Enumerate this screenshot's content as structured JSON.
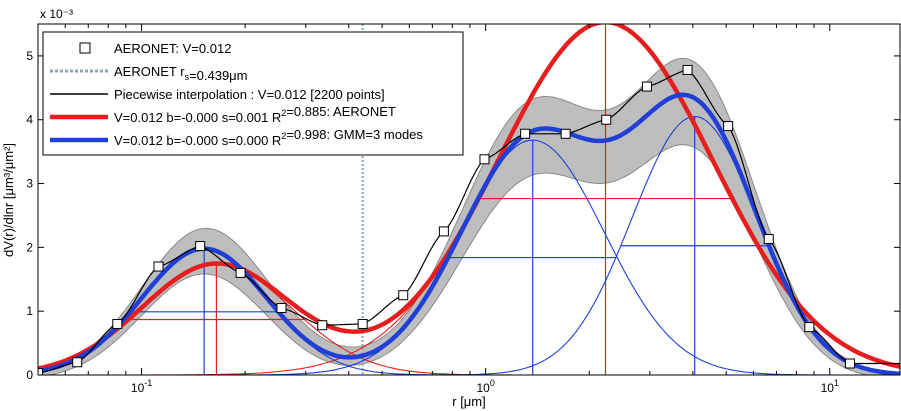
{
  "chart_data": {
    "type": "line",
    "xlabel": "r [μm]",
    "ylabel": "dV(r)/dlnr [μm³/μm²]",
    "xscale": "log",
    "xlim": [
      0.05,
      16
    ],
    "ylim": [
      0,
      5.5
    ],
    "y_multiplier": "x 10⁻³",
    "x_ticks": [
      {
        "value": 0.1,
        "base": "10",
        "exp": "-1"
      },
      {
        "value": 1,
        "base": "10",
        "exp": "0"
      },
      {
        "value": 10,
        "base": "10",
        "exp": "1"
      }
    ],
    "y_ticks": [
      "0",
      "1",
      "2",
      "3",
      "4",
      "5"
    ],
    "grid": false,
    "legend_placement": "top-left",
    "colors": {
      "aeronet_points": "#000000",
      "aeronet_rs": "#8fa3b0",
      "interpolation": "#000000",
      "aeronet_fit": "#e61e1e",
      "gmm_fit": "#1f3fd6",
      "uncertainty_band": "#bdbdbd"
    },
    "legend": [
      {
        "key": "aeronet_points",
        "parts": [
          {
            "t": "AERONET: V=0.012"
          }
        ]
      },
      {
        "key": "aeronet_rs",
        "parts": [
          {
            "t": "AERONET r"
          },
          {
            "t": "s",
            "sub": true
          },
          {
            "t": "=0.439μm"
          }
        ]
      },
      {
        "key": "interpolation",
        "parts": [
          {
            "t": "Piecewise interpolation : V=0.012 [2200 points]"
          }
        ]
      },
      {
        "key": "aeronet_fit",
        "parts": [
          {
            "t": "V=0.012 b=-0.000 s=0.001 R"
          },
          {
            "t": "2",
            "sup": true
          },
          {
            "t": "=0.885: AERONET"
          }
        ]
      },
      {
        "key": "gmm_fit",
        "parts": [
          {
            "t": "V=0.012 b=-0.000 s=0.000 R"
          },
          {
            "t": "2",
            "sup": true
          },
          {
            "t": "=0.998: GMM=3 modes"
          }
        ]
      }
    ],
    "aeronet_rs_value": 0.439,
    "series": [
      {
        "key": "aeronet_points",
        "x": [
          0.05,
          0.065,
          0.085,
          0.112,
          0.148,
          0.194,
          0.255,
          0.335,
          0.439,
          0.576,
          0.756,
          0.992,
          1.302,
          1.708,
          2.241,
          2.942,
          3.861,
          5.066,
          6.647,
          8.722,
          11.446
        ],
        "y": [
          0.03,
          0.2,
          0.8,
          1.7,
          2.02,
          1.6,
          1.05,
          0.78,
          0.8,
          1.25,
          2.25,
          3.38,
          3.78,
          3.78,
          4.0,
          4.52,
          4.78,
          3.9,
          2.13,
          0.75,
          0.18
        ]
      },
      {
        "key": "aeronet_fit",
        "modes": [
          {
            "amp": 1.74,
            "center": 0.165,
            "sigma": 0.5
          },
          {
            "amp": 5.53,
            "center": 2.23,
            "sigma": 0.72
          }
        ]
      },
      {
        "key": "gmm_fit",
        "modes": [
          {
            "amp": 1.98,
            "center": 0.152,
            "sigma": 0.42
          },
          {
            "amp": 3.68,
            "center": 1.37,
            "sigma": 0.48
          },
          {
            "amp": 4.05,
            "center": 4.05,
            "sigma": 0.42
          }
        ]
      }
    ]
  }
}
